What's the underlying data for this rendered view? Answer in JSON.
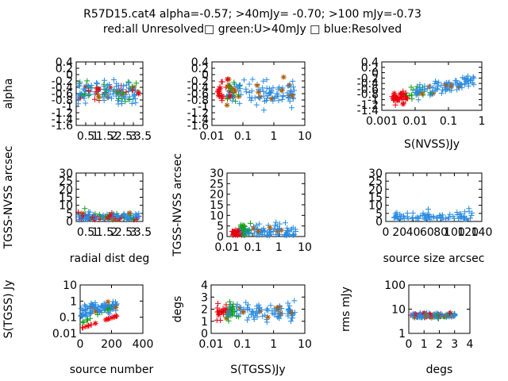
{
  "title": {
    "line1": "R57D15.cat4 alpha=-0.57; >40mJy= -0.70; >100 mJy=-0.73",
    "line2": "red:all Unresolved□ green:U>40mJy □ blue:Resolved"
  },
  "colors": {
    "red": "#e8000b",
    "green": "#10a010",
    "blue": "#2a8be0",
    "orange": "#b05a00"
  },
  "chart_data": [
    {
      "type": "scatter",
      "xlabel": "",
      "ylabel": "alpha",
      "xticks": [
        "0.5",
        "1",
        "1.5",
        "2",
        "2.5",
        "3",
        "3.5"
      ],
      "yticks": [
        "0.4",
        "0.2",
        "0",
        "-0.2",
        "-0.4",
        "-0.6",
        "-0.8",
        "-1",
        "-1.2",
        "-1.4",
        "-1.6"
      ],
      "xlim": [
        0,
        3.5
      ],
      "ylim": [
        -1.6,
        0.4
      ],
      "xscale": "linear",
      "yscale": "linear"
    },
    {
      "type": "scatter",
      "xlabel": "",
      "ylabel": "",
      "xticks": [
        "0.01",
        "0.1",
        "1",
        "10"
      ],
      "yticks": [
        "0.4",
        "0.2",
        "0",
        "-0.2",
        "-0.4",
        "-0.6",
        "-0.8",
        "-1",
        "-1.2",
        "-1.4",
        "-1.6"
      ],
      "xlim": [
        0.01,
        10
      ],
      "ylim": [
        -1.6,
        0.4
      ],
      "xscale": "log",
      "yscale": "linear"
    },
    {
      "type": "scatter",
      "xlabel": "S(NVSS)Jy",
      "ylabel": "",
      "xticks": [
        "0.001",
        "0.01",
        "0.1",
        "1"
      ],
      "yticks": [
        "0.4",
        "0.2",
        "0",
        "-0.2",
        "-0.4",
        "-0.6",
        "-0.8",
        "-1",
        "-1.2",
        "-1.4"
      ],
      "xlim": [
        0.001,
        1
      ],
      "ylim": [
        -1.4,
        0.4
      ],
      "xscale": "log",
      "yscale": "linear"
    },
    {
      "type": "scatter",
      "xlabel": "radial dist deg",
      "ylabel": "TGSS-NVSS arcsec",
      "xticks": [
        "0.5",
        "1",
        "1.5",
        "2",
        "2.5",
        "3",
        "3.5"
      ],
      "yticks": [
        "0",
        "5",
        "10",
        "15",
        "20",
        "25",
        "30"
      ],
      "xlim": [
        0,
        3.5
      ],
      "ylim": [
        0,
        30
      ],
      "xscale": "linear",
      "yscale": "linear"
    },
    {
      "type": "scatter",
      "xlabel": "",
      "ylabel": "TGSS-NVSS arcsec",
      "xticks": [
        "0.01",
        "0.1",
        "1",
        "10"
      ],
      "yticks": [
        "0",
        "5",
        "10",
        "15",
        "20",
        "25",
        "30"
      ],
      "xlim": [
        0.01,
        10
      ],
      "ylim": [
        0,
        30
      ],
      "xscale": "log",
      "yscale": "linear"
    },
    {
      "type": "scatter",
      "xlabel": "source size arcsec",
      "ylabel": "",
      "xticks": [
        "0",
        "20",
        "40",
        "60",
        "80",
        "100",
        "120",
        "140"
      ],
      "yticks": [
        "0",
        "5",
        "10",
        "15",
        "20",
        "25",
        "30"
      ],
      "xlim": [
        0,
        140
      ],
      "ylim": [
        0,
        30
      ],
      "xscale": "linear",
      "yscale": "linear"
    },
    {
      "type": "scatter",
      "xlabel": "source number",
      "ylabel": "S(TGSS) Jy",
      "xticks": [
        "0",
        "200",
        "400"
      ],
      "yticks": [
        "0.01",
        "0.1",
        "1",
        "10"
      ],
      "xlim": [
        0,
        400
      ],
      "ylim": [
        0.01,
        10
      ],
      "xscale": "linear",
      "yscale": "log"
    },
    {
      "type": "scatter",
      "xlabel": "S(TGSS)Jy",
      "ylabel": "degs",
      "xticks": [
        "0.01",
        "0.1",
        "1",
        "10"
      ],
      "yticks": [
        "0",
        "1",
        "2",
        "3",
        "4"
      ],
      "xlim": [
        0.01,
        10
      ],
      "ylim": [
        0,
        4
      ],
      "xscale": "log",
      "yscale": "linear"
    },
    {
      "type": "scatter",
      "xlabel": "degs",
      "ylabel": "rms mJy",
      "xticks": [
        "0",
        "1",
        "2",
        "3",
        "4"
      ],
      "yticks": [
        "1",
        "10",
        "100"
      ],
      "xlim": [
        0,
        4
      ],
      "ylim": [
        1,
        100
      ],
      "xscale": "linear",
      "yscale": "log"
    }
  ]
}
